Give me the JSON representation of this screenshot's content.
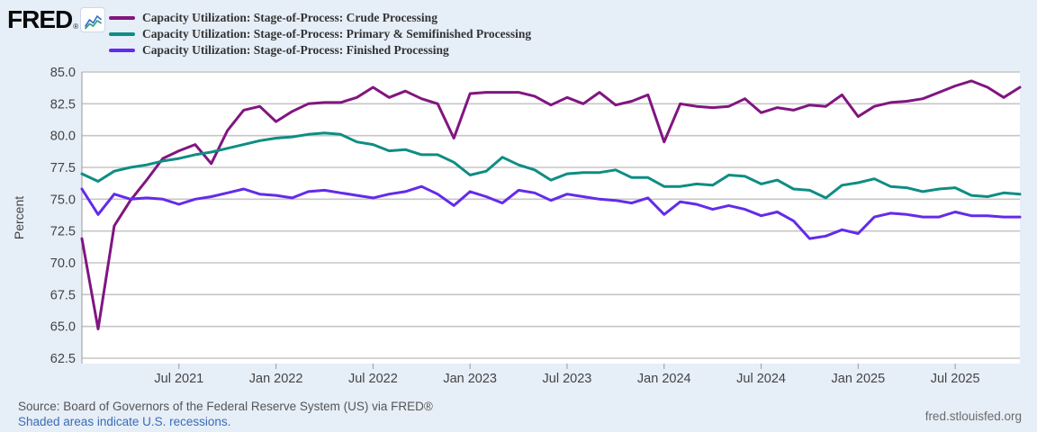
{
  "header": {
    "logo_text": "FRED",
    "registered_mark": "®"
  },
  "y_axis_label": "Percent",
  "footer": {
    "source_line": "Source: Board of Governors of the Federal Reserve System (US) via FRED®",
    "recessions_note": "Shaded areas indicate U.S. recessions.",
    "site_url": "fred.stlouisfed.org"
  },
  "colors": {
    "background": "#e6eef8",
    "plot_background": "#ffffff",
    "gridline": "#c6c6c6",
    "axis_line": "#9a9a9a",
    "axis_text": "#444444",
    "legend_text": "#333333",
    "source_text": "#555555",
    "link_text": "#3b6cb4",
    "url_text": "#6b6b6b",
    "logo_icon_blue": "#3a6fc7",
    "logo_icon_green": "#2f9e77"
  },
  "chart_data": {
    "type": "line",
    "title": "",
    "xlabel": "",
    "ylabel": "Percent",
    "ylim": [
      62.5,
      85.0
    ],
    "grid": true,
    "legend_position": "top-left",
    "frequency": "monthly",
    "dates": [
      "2021-01",
      "2021-02",
      "2021-03",
      "2021-04",
      "2021-05",
      "2021-06",
      "2021-07",
      "2021-08",
      "2021-09",
      "2021-10",
      "2021-11",
      "2021-12",
      "2022-01",
      "2022-02",
      "2022-03",
      "2022-04",
      "2022-05",
      "2022-06",
      "2022-07",
      "2022-08",
      "2022-09",
      "2022-10",
      "2022-11",
      "2022-12",
      "2023-01",
      "2023-02",
      "2023-03",
      "2023-04",
      "2023-05",
      "2023-06",
      "2023-07",
      "2023-08",
      "2023-09",
      "2023-10",
      "2023-11",
      "2023-12",
      "2024-01",
      "2024-02",
      "2024-03",
      "2024-04",
      "2024-05",
      "2024-06",
      "2024-07",
      "2024-08",
      "2024-09",
      "2024-10",
      "2024-11",
      "2024-12",
      "2025-01",
      "2025-02",
      "2025-03",
      "2025-04",
      "2025-05",
      "2025-06",
      "2025-07",
      "2025-08",
      "2025-09",
      "2025-10",
      "2025-11"
    ],
    "y_ticks": [
      {
        "label": "85.0",
        "value": 85.0
      },
      {
        "label": "82.5",
        "value": 82.5
      },
      {
        "label": "80.0",
        "value": 80.0
      },
      {
        "label": "77.5",
        "value": 77.5
      },
      {
        "label": "75.0",
        "value": 75.0
      },
      {
        "label": "72.5",
        "value": 72.5
      },
      {
        "label": "70.0",
        "value": 70.0
      },
      {
        "label": "67.5",
        "value": 67.5
      },
      {
        "label": "65.0",
        "value": 65.0
      },
      {
        "label": "62.5",
        "value": 62.5
      }
    ],
    "x_ticks": [
      {
        "label": "Jul 2021",
        "index": 6
      },
      {
        "label": "Jan 2022",
        "index": 12
      },
      {
        "label": "Jul 2022",
        "index": 18
      },
      {
        "label": "Jan 2023",
        "index": 24
      },
      {
        "label": "Jul 2023",
        "index": 30
      },
      {
        "label": "Jan 2024",
        "index": 36
      },
      {
        "label": "Jul 2024",
        "index": 42
      },
      {
        "label": "Jan 2025",
        "index": 48
      },
      {
        "label": "Jul 2025",
        "index": 54
      }
    ],
    "series": [
      {
        "name": "Capacity Utilization: Stage-of-Process: Crude Processing",
        "color": "#811580",
        "values": [
          71.9,
          64.8,
          72.9,
          74.9,
          76.5,
          78.2,
          78.8,
          79.3,
          77.8,
          80.4,
          82.0,
          82.3,
          81.1,
          81.9,
          82.5,
          82.6,
          82.6,
          83.0,
          83.8,
          83.0,
          83.5,
          82.9,
          82.5,
          79.8,
          83.3,
          83.4,
          83.4,
          83.4,
          83.1,
          82.4,
          83.0,
          82.5,
          83.4,
          82.4,
          82.7,
          83.2,
          79.5,
          82.5,
          82.3,
          82.2,
          82.3,
          82.9,
          81.8,
          82.2,
          82.0,
          82.4,
          82.3,
          83.2,
          81.5,
          82.3,
          82.6,
          82.7,
          82.9,
          83.4,
          83.9,
          84.3,
          83.8,
          83.0,
          83.8
        ]
      },
      {
        "name": "Capacity Utilization: Stage-of-Process: Primary & Semifinished Processing",
        "color": "#0e8d84",
        "values": [
          77.0,
          76.4,
          77.2,
          77.5,
          77.7,
          78.0,
          78.2,
          78.5,
          78.7,
          79.0,
          79.3,
          79.6,
          79.8,
          79.9,
          80.1,
          80.2,
          80.1,
          79.5,
          79.3,
          78.8,
          78.9,
          78.5,
          78.5,
          77.9,
          76.9,
          77.2,
          78.3,
          77.7,
          77.3,
          76.5,
          77.0,
          77.1,
          77.1,
          77.3,
          76.7,
          76.7,
          76.0,
          76.0,
          76.2,
          76.1,
          76.9,
          76.8,
          76.2,
          76.5,
          75.8,
          75.7,
          75.1,
          76.1,
          76.3,
          76.6,
          76.0,
          75.9,
          75.6,
          75.8,
          75.9,
          75.3,
          75.2,
          75.5,
          75.4
        ]
      },
      {
        "name": "Capacity Utilization: Stage-of-Process: Finished Processing",
        "color": "#632bea",
        "values": [
          75.8,
          73.8,
          75.4,
          75.0,
          75.1,
          75.0,
          74.6,
          75.0,
          75.2,
          75.5,
          75.8,
          75.4,
          75.3,
          75.1,
          75.6,
          75.7,
          75.5,
          75.3,
          75.1,
          75.4,
          75.6,
          76.0,
          75.4,
          74.5,
          75.6,
          75.2,
          74.7,
          75.7,
          75.5,
          74.9,
          75.4,
          75.2,
          75.0,
          74.9,
          74.7,
          75.1,
          73.8,
          74.8,
          74.6,
          74.2,
          74.5,
          74.2,
          73.7,
          74.0,
          73.3,
          71.9,
          72.1,
          72.6,
          72.3,
          73.6,
          73.9,
          73.8,
          73.6,
          73.6,
          74.0,
          73.7,
          73.7,
          73.6,
          73.6
        ]
      }
    ]
  }
}
